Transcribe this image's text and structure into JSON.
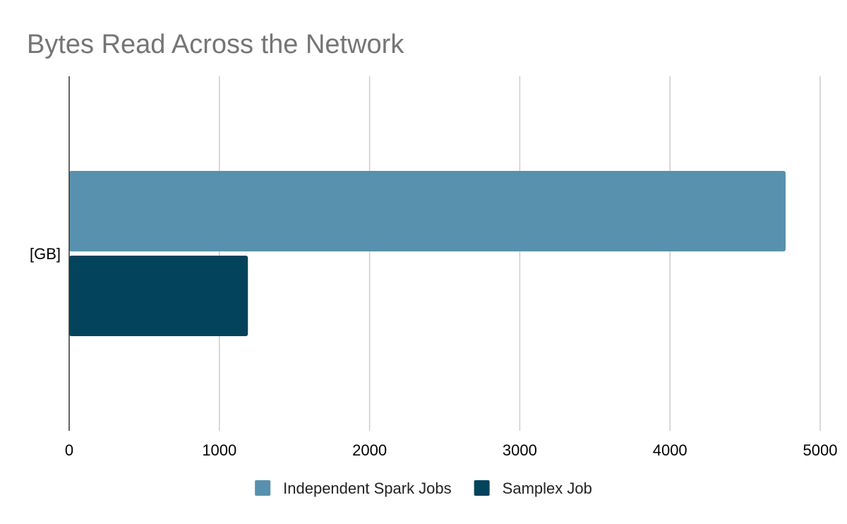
{
  "chart_data": {
    "type": "bar",
    "orientation": "horizontal",
    "title": "Bytes Read Across the Network",
    "xlabel": "",
    "ylabel": "",
    "categories": [
      "[GB]"
    ],
    "series": [
      {
        "name": "Independent Spark Jobs",
        "values": [
          4770
        ],
        "color": "#5891ad"
      },
      {
        "name": "Samplex Job",
        "values": [
          1190
        ],
        "color": "#03435c"
      }
    ],
    "xlim": [
      0,
      5000
    ],
    "x_ticks": [
      "0",
      "1000",
      "2000",
      "3000",
      "4000",
      "5000"
    ],
    "grid": true,
    "legend_position": "bottom"
  }
}
